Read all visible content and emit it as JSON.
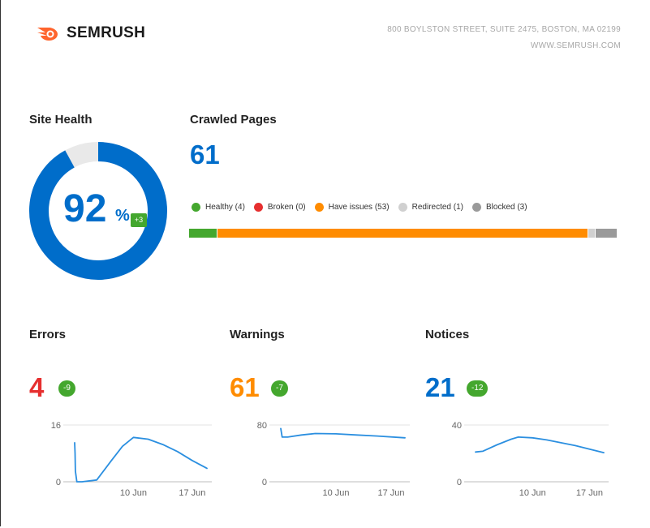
{
  "header": {
    "brand": "SEMRUSH",
    "address_line1": "800 BOYLSTON STREET, SUITE 2475, BOSTON, MA 02199",
    "address_line2": "WWW.SEMRUSH.COM",
    "brand_color": "#ff642d"
  },
  "site_health": {
    "title": "Site Health",
    "value": "92",
    "unit": "%",
    "delta": "+3",
    "percent": 92,
    "color": "#006dca",
    "track_color": "#e9e9e9"
  },
  "crawled_pages": {
    "title": "Crawled Pages",
    "count": "61",
    "legend": [
      {
        "label": "Healthy (4)",
        "count": 4,
        "color": "#44a72e"
      },
      {
        "label": "Broken (0)",
        "count": 0,
        "color": "#e62f2f"
      },
      {
        "label": "Have issues (53)",
        "count": 53,
        "color": "#ff8c00"
      },
      {
        "label": "Redirected (1)",
        "count": 1,
        "color": "#d0d0d0"
      },
      {
        "label": "Blocked (3)",
        "count": 3,
        "color": "#9a9a9a"
      }
    ]
  },
  "chart_data": [
    {
      "type": "line",
      "title": "Errors",
      "value": "4",
      "delta": "-9",
      "value_color": "#e62f2f",
      "line_color": "#2b8fe0",
      "ylim": [
        0,
        16
      ],
      "y_ticks": [
        "16",
        "0"
      ],
      "x_ticks": [
        "10 Jun",
        "17 Jun"
      ],
      "x": [
        0,
        0.05,
        0.1,
        0.3,
        1,
        3,
        5,
        6.5,
        8,
        10,
        12,
        14,
        16,
        18
      ],
      "values": [
        11,
        8,
        3,
        0,
        0,
        0.5,
        6,
        10,
        12.5,
        12,
        10.5,
        8.5,
        6,
        3.8
      ]
    },
    {
      "type": "line",
      "title": "Warnings",
      "value": "61",
      "delta": "-7",
      "value_color": "#ff8c00",
      "line_color": "#2b8fe0",
      "ylim": [
        0,
        80
      ],
      "y_ticks": [
        "80",
        "0"
      ],
      "x_ticks": [
        "10 Jun",
        "17 Jun"
      ],
      "x": [
        0,
        0.2,
        1,
        3,
        5,
        8,
        11,
        14,
        18
      ],
      "values": [
        75,
        63,
        63,
        66,
        68,
        67.5,
        66,
        64.5,
        62
      ]
    },
    {
      "type": "line",
      "title": "Notices",
      "value": "21",
      "delta": "-12",
      "value_color": "#006dca",
      "line_color": "#2b8fe0",
      "ylim": [
        0,
        40
      ],
      "y_ticks": [
        "40",
        "0"
      ],
      "x_ticks": [
        "10 Jun",
        "17 Jun"
      ],
      "x": [
        0,
        1,
        3,
        5,
        6,
        8,
        10,
        12,
        14,
        16,
        18
      ],
      "values": [
        21,
        21.5,
        26,
        30,
        31.5,
        31,
        29.5,
        27.5,
        25.5,
        23,
        20.5
      ]
    }
  ]
}
